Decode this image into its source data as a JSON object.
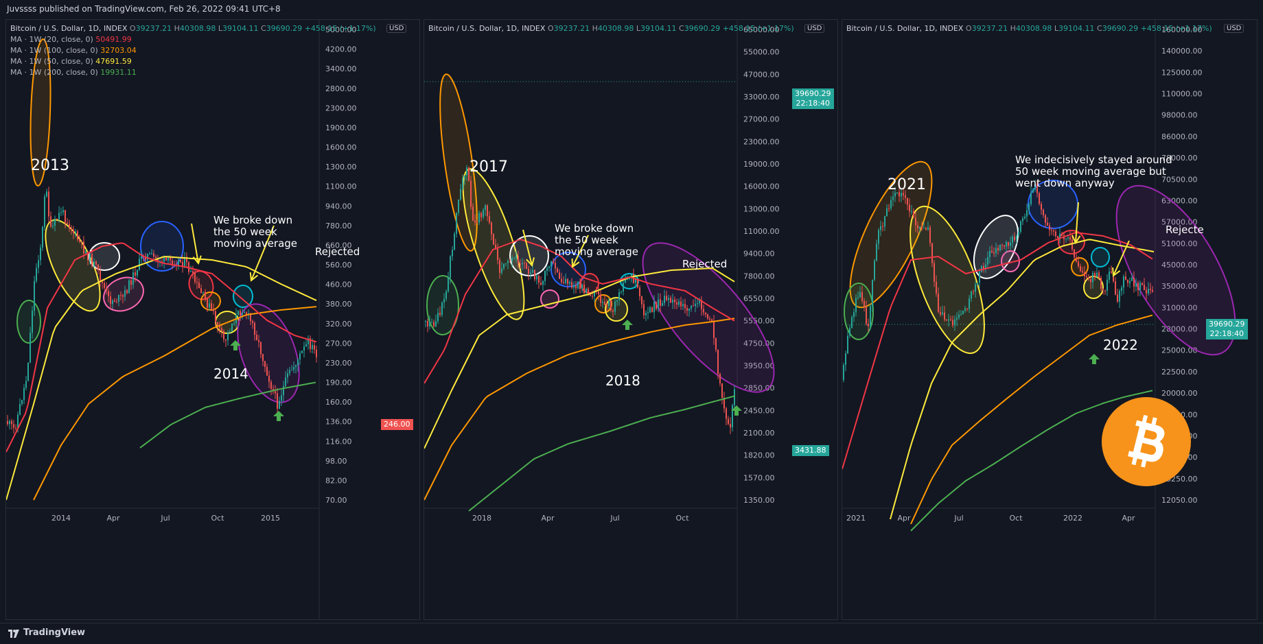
{
  "header": {
    "published": "Juvssss published on TradingView.com, Feb 26, 2022 09:41 UTC+8"
  },
  "footer": {
    "brand": "TradingView"
  },
  "colors": {
    "ma20": "#f23645",
    "ma100": "#ff9800",
    "ma50": "#ffeb3b",
    "ma200": "#4caf50",
    "up": "#26a69a",
    "down": "#ef5350",
    "bg": "#131722"
  },
  "legend": {
    "symbol": "Bitcoin / U.S. Dollar, 1D, INDEX",
    "open_label": "O",
    "open": "39237.21",
    "high_label": "H",
    "high": "40308.98",
    "low_label": "L",
    "low": "39104.11",
    "close_label": "C",
    "close": "39690.29",
    "change": "+458.15 (+1.17%)",
    "ma_lines": [
      {
        "label": "MA · 1W (20, close, 0)",
        "value": "50491.99",
        "color": "#f23645"
      },
      {
        "label": "MA · 1W (100, close, 0)",
        "value": "32703.04",
        "color": "#ff9800"
      },
      {
        "label": "MA · 1W (50, close, 0)",
        "value": "47691.59",
        "color": "#ffeb3b"
      },
      {
        "label": "MA · 1W (200, close, 0)",
        "value": "19931.11",
        "color": "#4caf50"
      }
    ]
  },
  "currency": "USD",
  "panels": [
    {
      "year_label": "2013",
      "year_label2": "2014",
      "note_break": "We broke down\nthe 50 week\nmoving average",
      "note_reject": "Rejected",
      "price_tag": "246.00",
      "axis": [
        "5000.00",
        "4200.00",
        "3400.00",
        "2800.00",
        "2300.00",
        "1900.00",
        "1600.00",
        "1300.00",
        "1100.00",
        "940.00",
        "780.00",
        "660.00",
        "560.00",
        "460.00",
        "380.00",
        "320.00",
        "270.00",
        "230.00",
        "190.00",
        "160.00",
        "136.00",
        "116.00",
        "98.00",
        "82.00",
        "70.00"
      ],
      "x_ticks": [
        "2014",
        "Apr",
        "Jul",
        "Oct",
        "2015"
      ]
    },
    {
      "year_label": "2017",
      "year_label2": "2018",
      "note_break": "We broke down\nthe 50 week\nmoving average",
      "note_reject": "Rejected",
      "price_tag": "39690.29",
      "price_tag_time": "22:18:40",
      "price_tag_low": "3431.88",
      "axis": [
        "65000.00",
        "55000.00",
        "47000.00",
        "33000.00",
        "27000.00",
        "23000.00",
        "19000.00",
        "16000.00",
        "13000.00",
        "11000.00",
        "9400.00",
        "7800.00",
        "6550.00",
        "5550.00",
        "4750.00",
        "3950.00",
        "2850.00",
        "2450.00",
        "2100.00",
        "1820.00",
        "1570.00",
        "1350.00"
      ],
      "x_ticks": [
        "2018",
        "Apr",
        "Jul",
        "Oct"
      ]
    },
    {
      "year_label": "2021",
      "year_label2": "2022",
      "note_indecisive": "We indecisively stayed around\n50 week moving average but\nwent down anyway",
      "note_reject": "Rejecte",
      "price_tag": "39690.29",
      "price_tag_time": "22:18:40",
      "axis": [
        "160000.00",
        "140000.00",
        "125000.00",
        "110000.00",
        "98000.00",
        "86000.00",
        "78000.00",
        "70500.00",
        "63000.00",
        "57000.00",
        "51000.00",
        "45000.00",
        "35000.00",
        "31000.00",
        "28000.00",
        "25000.00",
        "22500.00",
        "20000.00",
        "18000.00",
        "16250.00",
        "14650.00",
        "13250.00",
        "12050.00"
      ],
      "x_ticks": [
        "2021",
        "Apr",
        "Jul",
        "Oct",
        "2022",
        "Apr"
      ]
    }
  ]
}
